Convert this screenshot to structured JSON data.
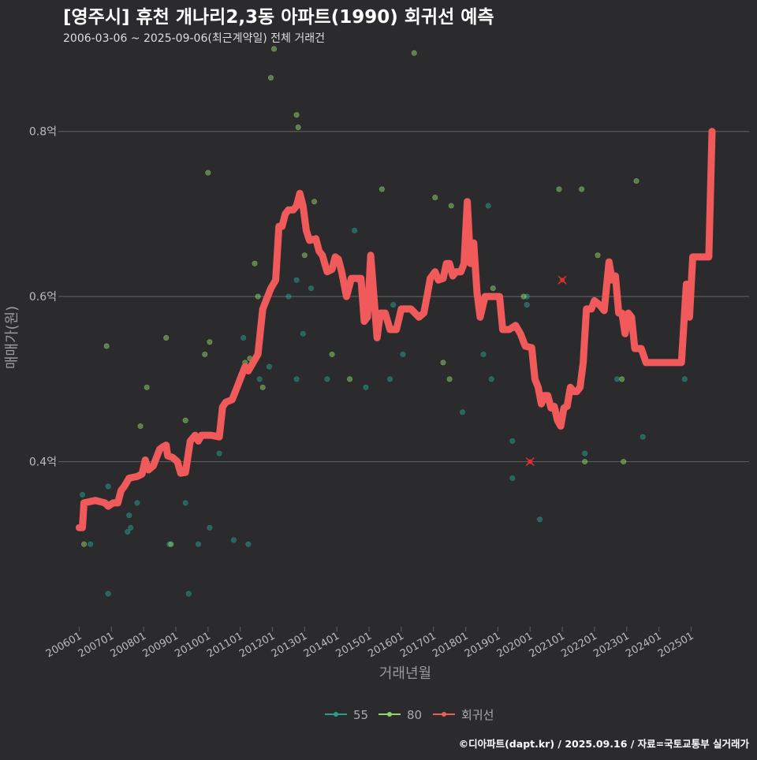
{
  "chart_data": {
    "type": "scatter",
    "title": "[영주시] 휴천 개나리2,3동 아파트(1990) 회귀선 예측",
    "subtitle": "2006-03-06 ~ 2025-09-06(최근계약일) 전체 거래건",
    "xlabel": "거래년월",
    "ylabel": "매매가(원)",
    "x_range": [
      2005.5,
      2026.8
    ],
    "ylim": [
      0.2,
      0.9
    ],
    "y_ticks": [
      0.4,
      0.6,
      0.8
    ],
    "y_tick_labels": [
      "0.4억",
      "0.6억",
      "0.8억"
    ],
    "x_ticks": [
      2006,
      2007,
      2008,
      2009,
      2010,
      2011,
      2012,
      2013,
      2014,
      2015,
      2016,
      2017,
      2018,
      2019,
      2020,
      2021,
      2022,
      2023,
      2024,
      2025
    ],
    "x_tick_labels": [
      "200601",
      "200701",
      "200801",
      "200901",
      "201001",
      "201101",
      "201201",
      "201301",
      "201401",
      "201501",
      "201601",
      "201701",
      "201801",
      "201901",
      "202001",
      "202101",
      "202201",
      "202301",
      "202401",
      "202501"
    ],
    "legend": [
      "55",
      "80",
      "회귀선"
    ],
    "colors": {
      "s55": "#2a9d8f",
      "s80": "#90d46a",
      "regression": "#f05a5a",
      "highlight": "#d73030",
      "grid": "#5a5a5a",
      "title": "#ffffff",
      "subtitle": "#dddddd",
      "axis_text": "#bbbbbb",
      "axis_title": "#999999",
      "legend_text": "#aaaaaa"
    },
    "series": [
      {
        "name": "55",
        "points": [
          [
            2006.1,
            0.36
          ],
          [
            2006.35,
            0.3
          ],
          [
            2006.9,
            0.37
          ],
          [
            2006.9,
            0.24
          ],
          [
            2007.5,
            0.315
          ],
          [
            2007.55,
            0.335
          ],
          [
            2007.6,
            0.32
          ],
          [
            2007.8,
            0.35
          ],
          [
            2008.8,
            0.3
          ],
          [
            2009.3,
            0.35
          ],
          [
            2009.4,
            0.24
          ],
          [
            2009.7,
            0.3
          ],
          [
            2010.05,
            0.32
          ],
          [
            2010.35,
            0.41
          ],
          [
            2010.8,
            0.305
          ],
          [
            2011.1,
            0.55
          ],
          [
            2011.25,
            0.3
          ],
          [
            2011.6,
            0.5
          ],
          [
            2011.9,
            0.515
          ],
          [
            2012.5,
            0.6
          ],
          [
            2012.75,
            0.5
          ],
          [
            2012.75,
            0.62
          ],
          [
            2012.85,
            0.71
          ],
          [
            2012.95,
            0.555
          ],
          [
            2013.2,
            0.61
          ],
          [
            2013.7,
            0.5
          ],
          [
            2014.55,
            0.68
          ],
          [
            2014.65,
            0.62
          ],
          [
            2014.9,
            0.49
          ],
          [
            2015.65,
            0.5
          ],
          [
            2015.75,
            0.59
          ],
          [
            2016.05,
            0.53
          ],
          [
            2017.9,
            0.46
          ],
          [
            2018.55,
            0.53
          ],
          [
            2018.8,
            0.5
          ],
          [
            2018.7,
            0.71
          ],
          [
            2019.45,
            0.38
          ],
          [
            2019.45,
            0.425
          ],
          [
            2019.9,
            0.6
          ],
          [
            2019.9,
            0.59
          ],
          [
            2020.3,
            0.33
          ],
          [
            2021.7,
            0.41
          ],
          [
            2022.7,
            0.5
          ],
          [
            2023.5,
            0.43
          ],
          [
            2024.8,
            0.5
          ]
        ]
      },
      {
        "name": "80",
        "points": [
          [
            2006.15,
            0.3
          ],
          [
            2006.85,
            0.54
          ],
          [
            2007.9,
            0.443
          ],
          [
            2008.1,
            0.49
          ],
          [
            2008.7,
            0.55
          ],
          [
            2008.85,
            0.3
          ],
          [
            2009.3,
            0.45
          ],
          [
            2009.9,
            0.53
          ],
          [
            2010.05,
            0.545
          ],
          [
            2010.0,
            0.75
          ],
          [
            2011.15,
            0.52
          ],
          [
            2011.3,
            0.525
          ],
          [
            2011.45,
            0.64
          ],
          [
            2011.55,
            0.6
          ],
          [
            2011.7,
            0.49
          ],
          [
            2011.95,
            0.865
          ],
          [
            2012.05,
            0.9
          ],
          [
            2012.75,
            0.82
          ],
          [
            2012.8,
            0.805
          ],
          [
            2013.0,
            0.65
          ],
          [
            2013.3,
            0.715
          ],
          [
            2013.85,
            0.53
          ],
          [
            2014.4,
            0.5
          ],
          [
            2015.4,
            0.73
          ],
          [
            2016.4,
            0.895
          ],
          [
            2017.05,
            0.72
          ],
          [
            2017.3,
            0.52
          ],
          [
            2017.55,
            0.71
          ],
          [
            2017.5,
            0.5
          ],
          [
            2018.85,
            0.61
          ],
          [
            2019.15,
            0.57
          ],
          [
            2019.8,
            0.6
          ],
          [
            2020.9,
            0.73
          ],
          [
            2021.6,
            0.73
          ],
          [
            2022.1,
            0.65
          ],
          [
            2022.85,
            0.5
          ],
          [
            2022.9,
            0.4
          ],
          [
            2023.3,
            0.74
          ],
          [
            2021.7,
            0.4
          ]
        ]
      }
    ],
    "highlights": [
      [
        2020.0,
        0.4
      ],
      [
        2021.0,
        0.62
      ]
    ],
    "regression": [
      [
        2006.0,
        0.32
      ],
      [
        2006.1,
        0.32
      ],
      [
        2006.15,
        0.35
      ],
      [
        2006.5,
        0.353
      ],
      [
        2006.8,
        0.35
      ],
      [
        2006.9,
        0.346
      ],
      [
        2007.05,
        0.35
      ],
      [
        2007.2,
        0.35
      ],
      [
        2007.3,
        0.365
      ],
      [
        2007.4,
        0.37
      ],
      [
        2007.55,
        0.38
      ],
      [
        2007.8,
        0.382
      ],
      [
        2007.95,
        0.385
      ],
      [
        2008.05,
        0.402
      ],
      [
        2008.15,
        0.39
      ],
      [
        2008.3,
        0.395
      ],
      [
        2008.5,
        0.415
      ],
      [
        2008.6,
        0.418
      ],
      [
        2008.7,
        0.42
      ],
      [
        2008.75,
        0.407
      ],
      [
        2008.9,
        0.405
      ],
      [
        2009.05,
        0.4
      ],
      [
        2009.15,
        0.386
      ],
      [
        2009.3,
        0.387
      ],
      [
        2009.45,
        0.425
      ],
      [
        2009.6,
        0.432
      ],
      [
        2009.7,
        0.425
      ],
      [
        2009.8,
        0.432
      ],
      [
        2010.1,
        0.432
      ],
      [
        2010.35,
        0.43
      ],
      [
        2010.45,
        0.466
      ],
      [
        2010.55,
        0.472
      ],
      [
        2010.75,
        0.475
      ],
      [
        2010.9,
        0.49
      ],
      [
        2011.0,
        0.5
      ],
      [
        2011.15,
        0.515
      ],
      [
        2011.25,
        0.51
      ],
      [
        2011.4,
        0.52
      ],
      [
        2011.55,
        0.53
      ],
      [
        2011.7,
        0.585
      ],
      [
        2011.85,
        0.6
      ],
      [
        2011.95,
        0.61
      ],
      [
        2012.1,
        0.62
      ],
      [
        2012.2,
        0.685
      ],
      [
        2012.3,
        0.685
      ],
      [
        2012.4,
        0.7
      ],
      [
        2012.5,
        0.705
      ],
      [
        2012.65,
        0.705
      ],
      [
        2012.75,
        0.71
      ],
      [
        2012.85,
        0.725
      ],
      [
        2012.95,
        0.71
      ],
      [
        2013.05,
        0.68
      ],
      [
        2013.15,
        0.668
      ],
      [
        2013.35,
        0.67
      ],
      [
        2013.45,
        0.655
      ],
      [
        2013.55,
        0.65
      ],
      [
        2013.7,
        0.63
      ],
      [
        2013.85,
        0.633
      ],
      [
        2013.95,
        0.648
      ],
      [
        2014.05,
        0.645
      ],
      [
        2014.15,
        0.63
      ],
      [
        2014.3,
        0.6
      ],
      [
        2014.45,
        0.622
      ],
      [
        2014.6,
        0.622
      ],
      [
        2014.75,
        0.622
      ],
      [
        2014.85,
        0.57
      ],
      [
        2014.95,
        0.575
      ],
      [
        2015.05,
        0.65
      ],
      [
        2015.15,
        0.6
      ],
      [
        2015.25,
        0.55
      ],
      [
        2015.35,
        0.58
      ],
      [
        2015.5,
        0.58
      ],
      [
        2015.65,
        0.56
      ],
      [
        2015.85,
        0.56
      ],
      [
        2016.0,
        0.585
      ],
      [
        2016.3,
        0.585
      ],
      [
        2016.55,
        0.575
      ],
      [
        2016.7,
        0.58
      ],
      [
        2016.8,
        0.6
      ],
      [
        2016.9,
        0.622
      ],
      [
        2017.05,
        0.63
      ],
      [
        2017.15,
        0.62
      ],
      [
        2017.3,
        0.622
      ],
      [
        2017.4,
        0.64
      ],
      [
        2017.5,
        0.64
      ],
      [
        2017.6,
        0.625
      ],
      [
        2017.7,
        0.63
      ],
      [
        2017.85,
        0.63
      ],
      [
        2017.95,
        0.64
      ],
      [
        2018.05,
        0.715
      ],
      [
        2018.15,
        0.64
      ],
      [
        2018.25,
        0.665
      ],
      [
        2018.35,
        0.605
      ],
      [
        2018.45,
        0.575
      ],
      [
        2018.6,
        0.6
      ],
      [
        2018.8,
        0.6
      ],
      [
        2019.05,
        0.6
      ],
      [
        2019.15,
        0.56
      ],
      [
        2019.35,
        0.56
      ],
      [
        2019.55,
        0.565
      ],
      [
        2019.7,
        0.555
      ],
      [
        2019.85,
        0.54
      ],
      [
        2020.05,
        0.538
      ],
      [
        2020.15,
        0.5
      ],
      [
        2020.25,
        0.49
      ],
      [
        2020.35,
        0.47
      ],
      [
        2020.45,
        0.48
      ],
      [
        2020.55,
        0.48
      ],
      [
        2020.65,
        0.465
      ],
      [
        2020.75,
        0.467
      ],
      [
        2020.85,
        0.45
      ],
      [
        2020.95,
        0.443
      ],
      [
        2021.05,
        0.465
      ],
      [
        2021.15,
        0.467
      ],
      [
        2021.25,
        0.49
      ],
      [
        2021.35,
        0.485
      ],
      [
        2021.45,
        0.485
      ],
      [
        2021.55,
        0.49
      ],
      [
        2021.65,
        0.52
      ],
      [
        2021.75,
        0.585
      ],
      [
        2021.9,
        0.585
      ],
      [
        2022.0,
        0.595
      ],
      [
        2022.15,
        0.59
      ],
      [
        2022.3,
        0.583
      ],
      [
        2022.45,
        0.642
      ],
      [
        2022.55,
        0.62
      ],
      [
        2022.65,
        0.625
      ],
      [
        2022.75,
        0.58
      ],
      [
        2022.85,
        0.58
      ],
      [
        2022.95,
        0.555
      ],
      [
        2023.05,
        0.58
      ],
      [
        2023.15,
        0.575
      ],
      [
        2023.25,
        0.537
      ],
      [
        2023.45,
        0.537
      ],
      [
        2023.6,
        0.52
      ],
      [
        2024.35,
        0.52
      ],
      [
        2024.55,
        0.52
      ],
      [
        2024.7,
        0.52
      ],
      [
        2024.85,
        0.615
      ],
      [
        2024.95,
        0.575
      ],
      [
        2025.05,
        0.648
      ],
      [
        2025.25,
        0.648
      ],
      [
        2025.4,
        0.648
      ],
      [
        2025.55,
        0.648
      ],
      [
        2025.65,
        0.8
      ]
    ],
    "credit": "©디아파트(dapt.kr) / 2025.09.16 / 자료=국토교통부 실거래가"
  }
}
